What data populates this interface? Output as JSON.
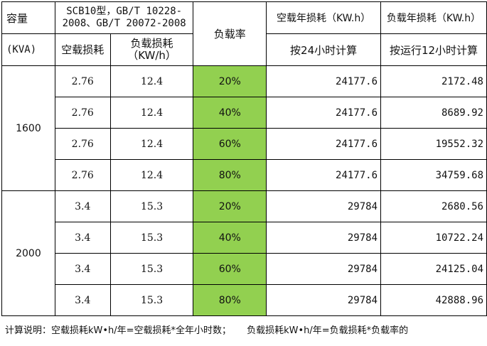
{
  "header": {
    "capacity_label": "容量",
    "capacity_unit": "(KVA)",
    "standard_label": "SCB10型，GB/T 10228-2008、GB/T 20072-2008",
    "noload_loss_label": "空载损耗",
    "load_loss_label": "负载损耗（KW/h）",
    "load_rate_label": "负载率",
    "noload_annual_label": "空载年损耗（KW.h）",
    "noload_annual_sub": "按24小时计算",
    "load_annual_label": "负载年损耗（KW.h）",
    "load_annual_sub": "按运行12小时计算"
  },
  "groups": [
    {
      "capacity": "1600",
      "rows": [
        {
          "noload": "2.76",
          "load": "12.4",
          "rate": "20%",
          "noload_annual": "24177.6",
          "load_annual": "2172.48"
        },
        {
          "noload": "2.76",
          "load": "12.4",
          "rate": "40%",
          "noload_annual": "24177.6",
          "load_annual": "8689.92"
        },
        {
          "noload": "2.76",
          "load": "12.4",
          "rate": "60%",
          "noload_annual": "24177.6",
          "load_annual": "19552.32"
        },
        {
          "noload": "2.76",
          "load": "12.4",
          "rate": "80%",
          "noload_annual": "24177.6",
          "load_annual": "34759.68"
        }
      ]
    },
    {
      "capacity": "2000",
      "rows": [
        {
          "noload": "3.4",
          "load": "15.3",
          "rate": "20%",
          "noload_annual": "29784",
          "load_annual": "2680.56"
        },
        {
          "noload": "3.4",
          "load": "15.3",
          "rate": "40%",
          "noload_annual": "29784",
          "load_annual": "10722.24"
        },
        {
          "noload": "3.4",
          "load": "15.3",
          "rate": "60%",
          "noload_annual": "29784",
          "load_annual": "24125.04"
        },
        {
          "noload": "3.4",
          "load": "15.3",
          "rate": "80%",
          "noload_annual": "29784",
          "load_annual": "42888.96"
        }
      ]
    }
  ],
  "note": {
    "part1": "计算说明：空载损耗kW•h/年=空载损耗*全年小时数；",
    "part2": "负载损耗kW•h/年=负载损耗*负载率的"
  },
  "colors": {
    "load_rate_fill": "#92d050",
    "border": "#000000"
  }
}
